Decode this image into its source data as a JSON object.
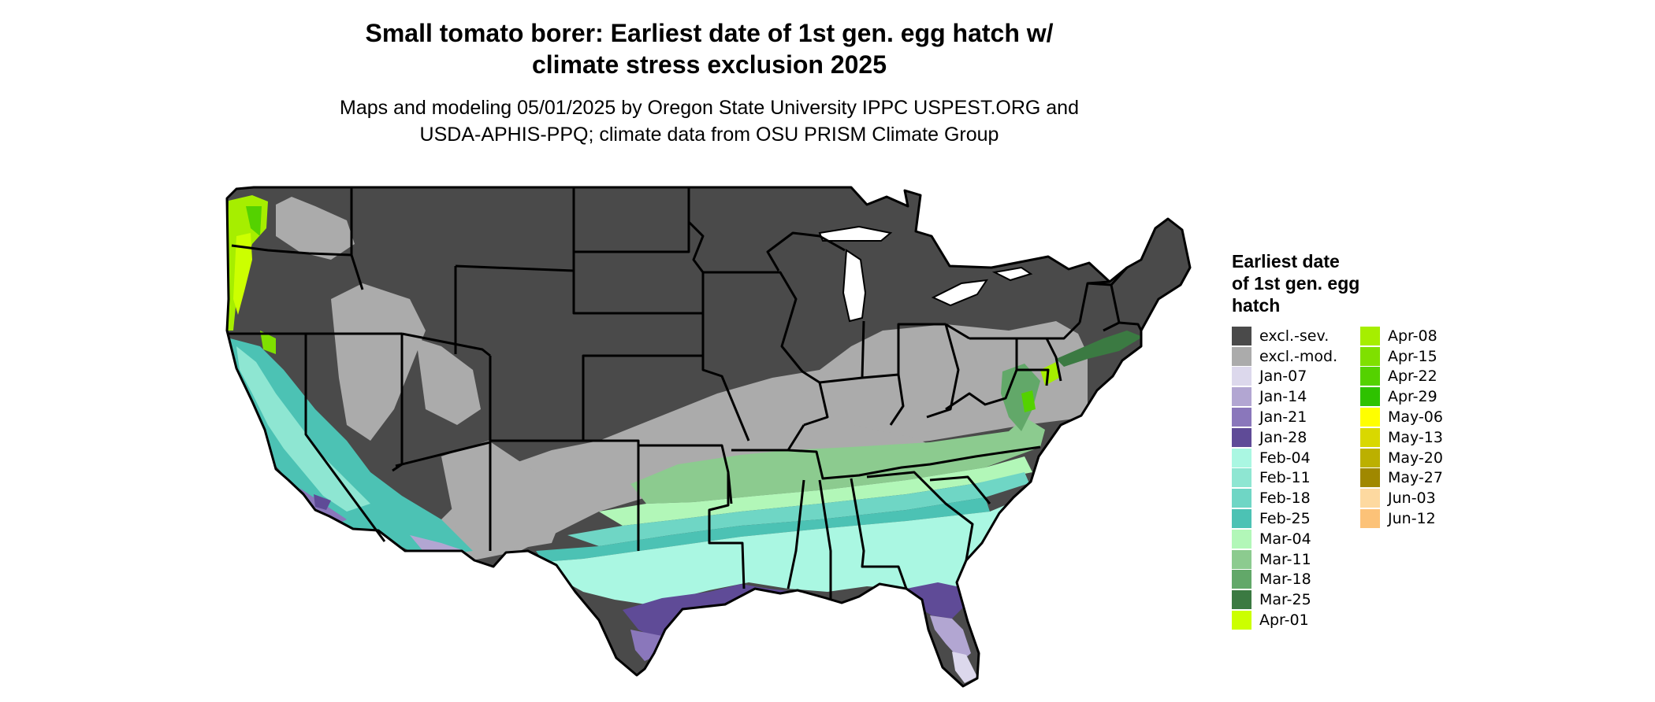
{
  "title": {
    "lines": [
      "Small tomato borer: Earliest date of 1st gen. egg hatch w/",
      "climate stress exclusion 2025"
    ]
  },
  "subtitle": {
    "lines": [
      "Maps and modeling 05/01/2025 by Oregon State University IPPC USPEST.ORG and",
      "USDA-APHIS-PPQ; climate data from OSU PRISM Climate Group"
    ]
  },
  "legend": {
    "title_lines": [
      "Earliest date",
      "of 1st gen. egg",
      "hatch"
    ],
    "columns": [
      [
        {
          "label": "excl.-sev.",
          "color": "#4a4a4a"
        },
        {
          "label": "excl.-mod.",
          "color": "#ababab"
        },
        {
          "label": "Jan-07",
          "color": "#dcd8ec"
        },
        {
          "label": "Jan-14",
          "color": "#b2a6d2"
        },
        {
          "label": "Jan-21",
          "color": "#8a77bb"
        },
        {
          "label": "Jan-28",
          "color": "#5f4b97"
        },
        {
          "label": "Feb-04",
          "color": "#aaf7e2"
        },
        {
          "label": "Feb-11",
          "color": "#8ee6d2"
        },
        {
          "label": "Feb-18",
          "color": "#6fd6c5"
        },
        {
          "label": "Feb-25",
          "color": "#4cc2b4"
        },
        {
          "label": "Mar-04",
          "color": "#b2f7b8"
        },
        {
          "label": "Mar-11",
          "color": "#8ccb8f"
        },
        {
          "label": "Mar-18",
          "color": "#62a869"
        },
        {
          "label": "Mar-25",
          "color": "#3b7a42"
        },
        {
          "label": "Apr-01",
          "color": "#ccff00"
        }
      ],
      [
        {
          "label": "Apr-08",
          "color": "#a6ee00"
        },
        {
          "label": "Apr-15",
          "color": "#7fe000"
        },
        {
          "label": "Apr-22",
          "color": "#54d200"
        },
        {
          "label": "Apr-29",
          "color": "#2ec200"
        },
        {
          "label": "May-06",
          "color": "#ffff00"
        },
        {
          "label": "May-13",
          "color": "#d9d800"
        },
        {
          "label": "May-20",
          "color": "#bcb000"
        },
        {
          "label": "May-27",
          "color": "#a08800"
        },
        {
          "label": "Jun-03",
          "color": "#fdd9a0"
        },
        {
          "label": "Jun-12",
          "color": "#fcc278"
        }
      ]
    ]
  }
}
